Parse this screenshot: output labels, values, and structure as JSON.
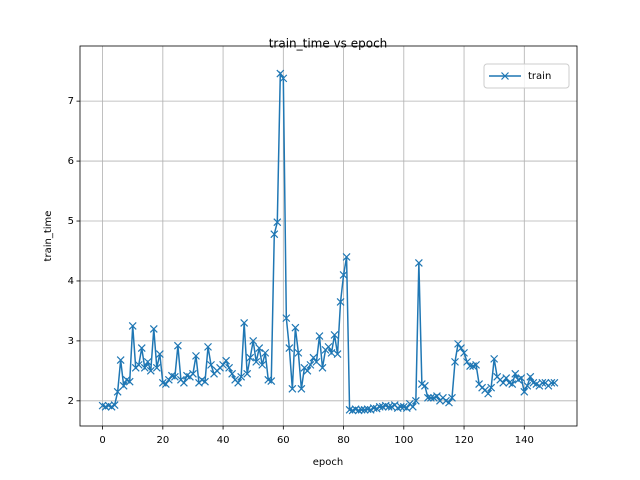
{
  "chart_data": {
    "type": "line",
    "title": "train_time vs epoch",
    "x_label": "epoch",
    "y_label": "train_time",
    "x": [
      0,
      1,
      2,
      3,
      4,
      5,
      6,
      7,
      8,
      9,
      10,
      11,
      12,
      13,
      14,
      15,
      16,
      17,
      18,
      19,
      20,
      21,
      22,
      23,
      24,
      25,
      26,
      27,
      28,
      29,
      30,
      31,
      32,
      33,
      34,
      35,
      36,
      37,
      38,
      39,
      40,
      41,
      42,
      43,
      44,
      45,
      46,
      47,
      48,
      49,
      50,
      51,
      52,
      53,
      54,
      55,
      56,
      57,
      58,
      59,
      60,
      61,
      62,
      63,
      64,
      65,
      66,
      67,
      68,
      69,
      70,
      71,
      72,
      73,
      74,
      75,
      76,
      77,
      78,
      79,
      80,
      81,
      82,
      83,
      84,
      85,
      86,
      87,
      88,
      89,
      90,
      91,
      92,
      93,
      94,
      95,
      96,
      97,
      98,
      99,
      100,
      101,
      102,
      103,
      104,
      105,
      106,
      107,
      108,
      109,
      110,
      111,
      112,
      113,
      114,
      115,
      116,
      117,
      118,
      119,
      120,
      121,
      122,
      123,
      124,
      125,
      126,
      127,
      128,
      129,
      130,
      131,
      132,
      133,
      134,
      135,
      136,
      137,
      138,
      139,
      140,
      141,
      142,
      143,
      144,
      145,
      146,
      147,
      148,
      149,
      150
    ],
    "series": [
      {
        "name": "train",
        "color": "#1f77b4",
        "marker": "x",
        "values": [
          1.92,
          1.9,
          1.92,
          1.9,
          1.93,
          2.15,
          2.68,
          2.25,
          2.35,
          2.32,
          3.25,
          2.55,
          2.6,
          2.88,
          2.55,
          2.65,
          2.5,
          3.2,
          2.55,
          2.78,
          2.3,
          2.28,
          2.35,
          2.42,
          2.4,
          2.92,
          2.35,
          2.3,
          2.42,
          2.4,
          2.45,
          2.75,
          2.3,
          2.35,
          2.32,
          2.9,
          2.6,
          2.45,
          2.5,
          2.55,
          2.6,
          2.67,
          2.55,
          2.45,
          2.35,
          2.3,
          2.4,
          3.3,
          2.45,
          2.72,
          3.0,
          2.65,
          2.88,
          2.6,
          2.8,
          2.35,
          2.33,
          4.78,
          4.98,
          7.46,
          7.38,
          3.38,
          2.88,
          2.2,
          3.22,
          2.8,
          2.2,
          2.55,
          2.5,
          2.6,
          2.72,
          2.65,
          3.08,
          2.55,
          2.85,
          2.9,
          2.8,
          3.1,
          2.78,
          3.65,
          4.1,
          4.4,
          1.85,
          1.84,
          1.86,
          1.84,
          1.85,
          1.85,
          1.86,
          1.85,
          1.88,
          1.87,
          1.9,
          1.9,
          1.92,
          1.9,
          1.9,
          1.93,
          1.88,
          1.9,
          1.9,
          1.88,
          1.95,
          1.9,
          2.0,
          4.3,
          2.28,
          2.25,
          2.05,
          2.05,
          2.05,
          2.08,
          2.0,
          2.05,
          2.0,
          1.97,
          2.05,
          2.65,
          2.95,
          2.88,
          2.8,
          2.65,
          2.58,
          2.58,
          2.6,
          2.28,
          2.22,
          2.18,
          2.12,
          2.22,
          2.7,
          2.4,
          2.35,
          2.3,
          2.38,
          2.3,
          2.28,
          2.45,
          2.35,
          2.38,
          2.15,
          2.25,
          2.4,
          2.3,
          2.28,
          2.25,
          2.3,
          2.3,
          2.25,
          2.3,
          2.3
        ]
      }
    ],
    "xlim": [
      -7.5,
      157.5
    ],
    "ylim": [
      1.58,
      7.92
    ],
    "xticks": [
      0,
      20,
      40,
      60,
      80,
      100,
      120,
      140
    ],
    "yticks": [
      2,
      3,
      4,
      5,
      6,
      7
    ],
    "grid": true,
    "legend": "upper right"
  }
}
